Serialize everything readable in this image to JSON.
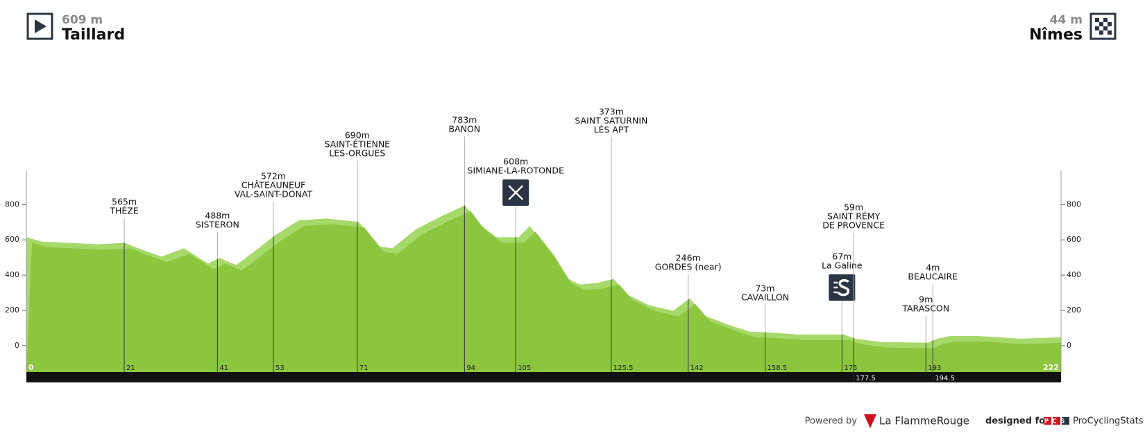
{
  "header": {
    "start_altitude": "609 m",
    "start_name": "Taillard",
    "finish_altitude": "44 m",
    "finish_name": "Nîmes"
  },
  "chart_data": {
    "type": "area",
    "x": [
      0,
      3.3,
      9.2,
      15.2,
      21.1,
      24,
      29,
      33.8,
      39,
      41.4,
      45,
      49.4,
      53.2,
      58.4,
      64.3,
      71.3,
      75.5,
      78.5,
      83.7,
      89.6,
      94.1,
      97,
      100.8,
      105.6,
      108,
      112,
      115.7,
      118.7,
      122.4,
      126,
      129,
      133.6,
      138.8,
      142.3,
      145.5,
      150.7,
      155.2,
      158.9,
      165.6,
      175.4,
      177.9,
      183.4,
      193.4,
      195.4,
      198.3,
      204.3,
      213.2,
      222
    ],
    "values": [
      615,
      590,
      583,
      575,
      583,
      552,
      505,
      552,
      465,
      497,
      457,
      544,
      623,
      710,
      721,
      702,
      564,
      552,
      662,
      741,
      796,
      694,
      615,
      615,
      678,
      544,
      386,
      347,
      355,
      378,
      288,
      229,
      197,
      268,
      170,
      118,
      79,
      75,
      63,
      63,
      39,
      20,
      16,
      39,
      55,
      55,
      39,
      47
    ],
    "color": "#8cc63f",
    "highlight_color": "#a6d96a",
    "xlim": [
      0,
      222
    ],
    "ylim": [
      -150,
      990
    ],
    "yticks": [
      0,
      200,
      400,
      600,
      800
    ],
    "waypoints": [
      {
        "km": 21,
        "label": "565m",
        "name": [
          "THÈZE"
        ]
      },
      {
        "km": 41,
        "label": "488m",
        "name": [
          "SISTERON"
        ]
      },
      {
        "km": 53,
        "label": "572m",
        "name": [
          "CHÂTEAUNEUF",
          "VAL-SAINT-DONAT"
        ]
      },
      {
        "km": 71,
        "label": "690m",
        "name": [
          "SAINT-ÉTIENNE",
          "LES-ORGUES"
        ]
      },
      {
        "km": 94,
        "label": "783m",
        "name": [
          "BANON"
        ]
      },
      {
        "km": 105,
        "label": "608m",
        "name": [
          "SIMIANE-LA-ROTONDE"
        ],
        "icon": "feed"
      },
      {
        "km": 125.5,
        "label": "373m",
        "name": [
          "SAINT SATURNIN",
          "LÈS APT"
        ]
      },
      {
        "km": 142,
        "label": "246m",
        "name": [
          "GORDES (near)"
        ]
      },
      {
        "km": 158.5,
        "label": "73m",
        "name": [
          "CAVAILLON"
        ]
      },
      {
        "km": 175,
        "label": "67m",
        "name": [
          "La Galine"
        ],
        "icon": "sprint"
      },
      {
        "km": 177.5,
        "label": "59m",
        "name": [
          "SAINT RÉMY",
          "DE PROVENCE"
        ]
      },
      {
        "km": 193,
        "label": "9m",
        "name": [
          "TARASCON"
        ]
      },
      {
        "km": 194.5,
        "label": "4m",
        "name": [
          "BEAUCAIRE"
        ]
      }
    ]
  },
  "footer": {
    "powered_by": "Powered by",
    "brand": "La FlammeRouge",
    "designed_for": "designed for",
    "pcs_logo": "PCS",
    "site": "ProCyclingStats"
  }
}
